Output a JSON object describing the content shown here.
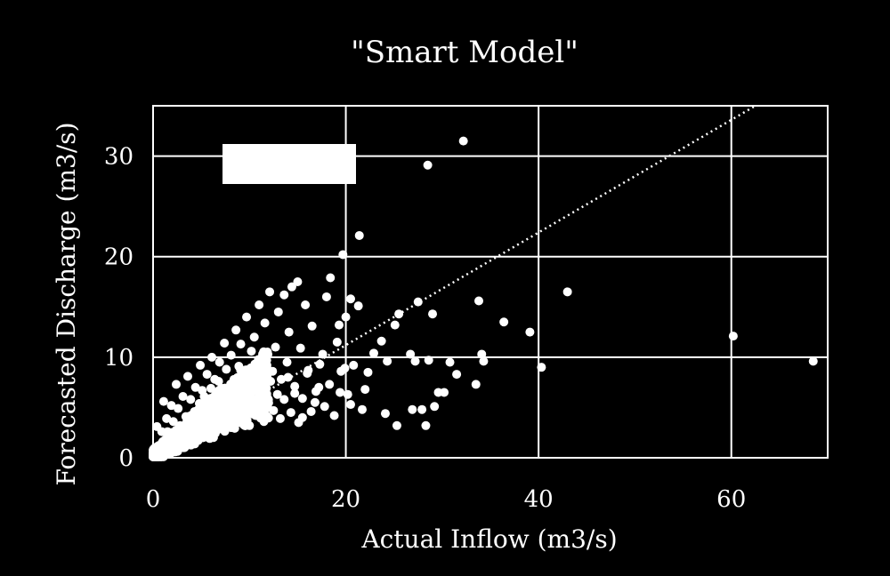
{
  "chart_data": {
    "type": "scatter",
    "title": "\"Smart Model\"",
    "xlabel": "Actual Inflow (m3/s)",
    "ylabel": "Forecasted Discharge (m3/s)",
    "xlim": [
      0,
      70
    ],
    "ylim": [
      0,
      35
    ],
    "xticks": [
      0,
      20,
      40,
      60
    ],
    "yticks": [
      0,
      10,
      20,
      30
    ],
    "xtick_labels": [
      "0",
      "20",
      "40",
      "60"
    ],
    "ytick_labels": [
      "0",
      "10",
      "20",
      "30"
    ],
    "grid": true,
    "colors": {
      "background": "#000000",
      "points": "#ffffff",
      "grid": "#ffffff",
      "trendline": "#ffffff"
    },
    "trendline": {
      "style": "dotted",
      "slope": 0.56,
      "intercept": 0
    },
    "legend_box": {
      "placement": "top-left",
      "text": ""
    },
    "points": [
      [
        68.5,
        9.6
      ],
      [
        60.2,
        12.1
      ],
      [
        43.0,
        16.5
      ],
      [
        40.3,
        9.0
      ],
      [
        39.1,
        12.5
      ],
      [
        36.4,
        13.5
      ],
      [
        34.3,
        9.6
      ],
      [
        34.1,
        10.3
      ],
      [
        33.8,
        15.6
      ],
      [
        33.5,
        7.3
      ],
      [
        32.2,
        31.5
      ],
      [
        31.5,
        8.3
      ],
      [
        30.8,
        9.5
      ],
      [
        30.2,
        6.5
      ],
      [
        29.6,
        6.5
      ],
      [
        29.2,
        5.1
      ],
      [
        29.0,
        14.3
      ],
      [
        28.6,
        9.7
      ],
      [
        28.5,
        29.1
      ],
      [
        28.3,
        3.2
      ],
      [
        27.9,
        4.8
      ],
      [
        27.5,
        15.5
      ],
      [
        27.2,
        9.6
      ],
      [
        26.9,
        4.8
      ],
      [
        26.7,
        10.3
      ],
      [
        25.1,
        13.2
      ],
      [
        25.5,
        14.3
      ],
      [
        25.3,
        3.2
      ],
      [
        24.3,
        9.6
      ],
      [
        24.1,
        4.4
      ],
      [
        23.7,
        11.6
      ],
      [
        22.9,
        10.4
      ],
      [
        22.3,
        8.5
      ],
      [
        22.0,
        6.8
      ],
      [
        21.7,
        4.8
      ],
      [
        21.4,
        22.1
      ],
      [
        21.3,
        15.1
      ],
      [
        20.8,
        9.2
      ],
      [
        20.5,
        15.8
      ],
      [
        20.2,
        6.3
      ],
      [
        20.0,
        14.0
      ],
      [
        19.7,
        20.2
      ],
      [
        19.5,
        8.6
      ],
      [
        19.3,
        13.2
      ],
      [
        19.1,
        11.5
      ],
      [
        18.4,
        17.9
      ],
      [
        18.0,
        16.0
      ],
      [
        17.6,
        10.3
      ],
      [
        17.2,
        7.0
      ],
      [
        16.8,
        5.5
      ],
      [
        16.5,
        13.1
      ],
      [
        16.1,
        8.7
      ],
      [
        15.8,
        15.2
      ],
      [
        15.5,
        4.0
      ],
      [
        15.3,
        10.9
      ],
      [
        15.0,
        17.5
      ],
      [
        14.7,
        6.4
      ],
      [
        14.4,
        17.0
      ],
      [
        14.1,
        12.5
      ],
      [
        13.9,
        9.5
      ],
      [
        13.6,
        16.2
      ],
      [
        13.3,
        7.8
      ],
      [
        13.0,
        14.5
      ],
      [
        12.7,
        11.0
      ],
      [
        12.4,
        8.6
      ],
      [
        12.1,
        16.5
      ],
      [
        11.9,
        5.9
      ],
      [
        11.6,
        13.4
      ],
      [
        11.3,
        9.9
      ],
      [
        11.0,
        15.2
      ],
      [
        10.8,
        7.2
      ],
      [
        10.5,
        12.0
      ],
      [
        10.2,
        10.6
      ],
      [
        9.9,
        8.3
      ],
      [
        9.7,
        14.0
      ],
      [
        9.4,
        6.7
      ],
      [
        9.1,
        11.3
      ],
      [
        8.9,
        9.1
      ],
      [
        8.6,
        12.7
      ],
      [
        8.4,
        7.5
      ],
      [
        8.1,
        10.2
      ],
      [
        7.9,
        5.9
      ],
      [
        7.6,
        8.8
      ],
      [
        7.4,
        11.4
      ],
      [
        7.1,
        6.9
      ],
      [
        6.9,
        9.5
      ],
      [
        6.6,
        4.9
      ],
      [
        6.4,
        7.8
      ],
      [
        6.1,
        10.0
      ],
      [
        5.9,
        5.6
      ],
      [
        5.6,
        8.3
      ],
      [
        5.4,
        3.9
      ],
      [
        5.1,
        6.7
      ],
      [
        4.9,
        9.2
      ],
      [
        4.6,
        4.7
      ],
      [
        4.4,
        7.0
      ],
      [
        4.1,
        3.2
      ],
      [
        3.9,
        5.8
      ],
      [
        3.6,
        8.1
      ],
      [
        3.4,
        4.1
      ],
      [
        3.1,
        6.1
      ],
      [
        2.9,
        2.7
      ],
      [
        2.6,
        4.9
      ],
      [
        2.4,
        7.3
      ],
      [
        2.1,
        3.6
      ],
      [
        1.9,
        5.2
      ],
      [
        1.6,
        2.1
      ],
      [
        1.4,
        3.9
      ],
      [
        1.1,
        5.6
      ],
      [
        0.9,
        2.6
      ],
      [
        0.6,
        1.2
      ],
      [
        0.4,
        3.1
      ],
      [
        0.2,
        0.5
      ],
      [
        0.5,
        0.2
      ],
      [
        0.8,
        0.9
      ],
      [
        1.0,
        1.6
      ],
      [
        1.3,
        0.7
      ],
      [
        1.5,
        2.6
      ],
      [
        1.8,
        1.4
      ],
      [
        2.0,
        0.9
      ],
      [
        2.3,
        2.0
      ],
      [
        2.5,
        1.2
      ],
      [
        2.8,
        3.2
      ],
      [
        3.0,
        1.9
      ],
      [
        3.3,
        2.6
      ],
      [
        3.5,
        1.5
      ],
      [
        3.8,
        3.6
      ],
      [
        4.0,
        2.3
      ],
      [
        4.3,
        4.6
      ],
      [
        4.5,
        2.8
      ],
      [
        4.8,
        5.4
      ],
      [
        5.0,
        3.4
      ],
      [
        5.3,
        6.1
      ],
      [
        5.5,
        2.6
      ],
      [
        5.8,
        4.2
      ],
      [
        6.0,
        6.9
      ],
      [
        6.3,
        3.1
      ],
      [
        6.5,
        5.2
      ],
      [
        6.8,
        7.6
      ],
      [
        7.0,
        3.8
      ],
      [
        7.3,
        5.9
      ],
      [
        7.5,
        2.9
      ],
      [
        7.8,
        4.6
      ],
      [
        8.0,
        6.6
      ],
      [
        8.3,
        3.5
      ],
      [
        8.5,
        5.3
      ],
      [
        8.8,
        7.9
      ],
      [
        9.0,
        4.1
      ],
      [
        9.3,
        6.2
      ],
      [
        9.5,
        8.7
      ],
      [
        9.8,
        4.8
      ],
      [
        10.0,
        3.2
      ],
      [
        10.3,
        5.6
      ],
      [
        10.6,
        8.2
      ],
      [
        10.9,
        4.3
      ],
      [
        11.2,
        6.7
      ],
      [
        11.5,
        3.6
      ],
      [
        11.8,
        5.5
      ],
      [
        12.2,
        7.6
      ],
      [
        12.5,
        4.7
      ],
      [
        12.9,
        6.3
      ],
      [
        13.2,
        3.9
      ],
      [
        13.6,
        5.8
      ],
      [
        14.0,
        8.0
      ],
      [
        14.3,
        4.5
      ],
      [
        14.7,
        7.1
      ],
      [
        15.1,
        3.5
      ],
      [
        15.5,
        5.9
      ],
      [
        16.0,
        8.4
      ],
      [
        16.4,
        4.6
      ],
      [
        16.9,
        6.6
      ],
      [
        17.3,
        9.3
      ],
      [
        17.8,
        5.1
      ],
      [
        18.3,
        7.3
      ],
      [
        18.8,
        4.2
      ],
      [
        19.4,
        6.5
      ],
      [
        19.9,
        8.9
      ],
      [
        20.5,
        5.3
      ]
    ]
  }
}
